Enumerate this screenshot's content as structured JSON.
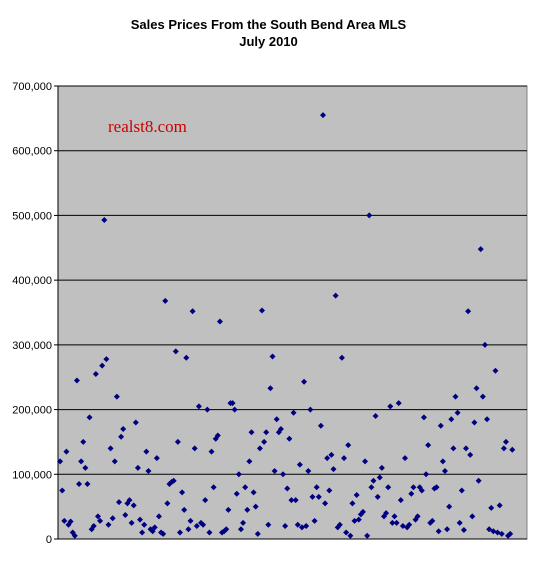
{
  "chart_data": {
    "type": "scatter",
    "title": "Sales Prices From the South Bend Area MLS",
    "subtitle": "July 2010",
    "watermark": "realst8.com",
    "xlabel": "",
    "ylabel": "",
    "ylim": [
      0,
      700000
    ],
    "xlim": [
      0,
      223
    ],
    "y_ticks": [
      0,
      100000,
      200000,
      300000,
      400000,
      500000,
      600000,
      700000
    ],
    "y_tick_labels": [
      "0",
      "100,000",
      "200,000",
      "300,000",
      "400,000",
      "500,000",
      "600,000",
      "700,000"
    ],
    "grid": true,
    "legend": "none",
    "colors": {
      "plot_background": "#c0c0c0",
      "marker": "#000080",
      "gridline": "#000000",
      "watermark": "#cc0000"
    },
    "points": [
      [
        1,
        120000
      ],
      [
        2,
        75000
      ],
      [
        3,
        28000
      ],
      [
        4,
        135000
      ],
      [
        5,
        22000
      ],
      [
        6,
        27000
      ],
      [
        7,
        10000
      ],
      [
        8,
        5000
      ],
      [
        9,
        245000
      ],
      [
        10,
        85000
      ],
      [
        11,
        120000
      ],
      [
        12,
        150000
      ],
      [
        13,
        110000
      ],
      [
        14,
        85000
      ],
      [
        15,
        188000
      ],
      [
        16,
        15000
      ],
      [
        17,
        20000
      ],
      [
        18,
        255000
      ],
      [
        19,
        35000
      ],
      [
        20,
        28000
      ],
      [
        21,
        268000
      ],
      [
        22,
        493000
      ],
      [
        23,
        278000
      ],
      [
        24,
        22000
      ],
      [
        25,
        140000
      ],
      [
        26,
        32000
      ],
      [
        27,
        120000
      ],
      [
        28,
        220000
      ],
      [
        29,
        57000
      ],
      [
        30,
        158000
      ],
      [
        31,
        170000
      ],
      [
        32,
        37000
      ],
      [
        33,
        55000
      ],
      [
        34,
        60000
      ],
      [
        35,
        25000
      ],
      [
        36,
        52000
      ],
      [
        37,
        180000
      ],
      [
        38,
        110000
      ],
      [
        39,
        30000
      ],
      [
        40,
        10000
      ],
      [
        41,
        22000
      ],
      [
        42,
        135000
      ],
      [
        43,
        105000
      ],
      [
        44,
        15000
      ],
      [
        45,
        12000
      ],
      [
        46,
        18000
      ],
      [
        47,
        125000
      ],
      [
        48,
        35000
      ],
      [
        49,
        10000
      ],
      [
        50,
        8000
      ],
      [
        51,
        368000
      ],
      [
        52,
        55000
      ],
      [
        53,
        85000
      ],
      [
        54,
        88000
      ],
      [
        55,
        90000
      ],
      [
        56,
        290000
      ],
      [
        57,
        150000
      ],
      [
        58,
        10000
      ],
      [
        59,
        72000
      ],
      [
        60,
        45000
      ],
      [
        61,
        280000
      ],
      [
        62,
        15000
      ],
      [
        63,
        28000
      ],
      [
        64,
        352000
      ],
      [
        65,
        140000
      ],
      [
        66,
        20000
      ],
      [
        67,
        205000
      ],
      [
        68,
        25000
      ],
      [
        69,
        22000
      ],
      [
        70,
        60000
      ],
      [
        71,
        200000
      ],
      [
        72,
        10000
      ],
      [
        73,
        135000
      ],
      [
        74,
        80000
      ],
      [
        75,
        155000
      ],
      [
        76,
        160000
      ],
      [
        77,
        336000
      ],
      [
        78,
        10000
      ],
      [
        79,
        12000
      ],
      [
        80,
        15000
      ],
      [
        81,
        45000
      ],
      [
        82,
        210000
      ],
      [
        83,
        210000
      ],
      [
        84,
        200000
      ],
      [
        85,
        70000
      ],
      [
        86,
        100000
      ],
      [
        87,
        15000
      ],
      [
        88,
        25000
      ],
      [
        89,
        80000
      ],
      [
        90,
        45000
      ],
      [
        91,
        120000
      ],
      [
        92,
        165000
      ],
      [
        93,
        72000
      ],
      [
        94,
        50000
      ],
      [
        95,
        8000
      ],
      [
        96,
        140000
      ],
      [
        97,
        353000
      ],
      [
        98,
        150000
      ],
      [
        99,
        165000
      ],
      [
        100,
        22000
      ],
      [
        101,
        233000
      ],
      [
        102,
        282000
      ],
      [
        103,
        105000
      ],
      [
        104,
        185000
      ],
      [
        105,
        165000
      ],
      [
        106,
        170000
      ],
      [
        107,
        100000
      ],
      [
        108,
        20000
      ],
      [
        109,
        78000
      ],
      [
        110,
        155000
      ],
      [
        111,
        60000
      ],
      [
        112,
        195000
      ],
      [
        113,
        60000
      ],
      [
        114,
        22000
      ],
      [
        115,
        115000
      ],
      [
        116,
        18000
      ],
      [
        117,
        243000
      ],
      [
        118,
        20000
      ],
      [
        119,
        105000
      ],
      [
        120,
        200000
      ],
      [
        121,
        65000
      ],
      [
        122,
        28000
      ],
      [
        123,
        80000
      ],
      [
        124,
        65000
      ],
      [
        125,
        175000
      ],
      [
        126,
        655000
      ],
      [
        127,
        55000
      ],
      [
        128,
        125000
      ],
      [
        129,
        75000
      ],
      [
        130,
        130000
      ],
      [
        131,
        108000
      ],
      [
        132,
        376000
      ],
      [
        133,
        18000
      ],
      [
        134,
        22000
      ],
      [
        135,
        280000
      ],
      [
        136,
        125000
      ],
      [
        137,
        10000
      ],
      [
        138,
        145000
      ],
      [
        139,
        5000
      ],
      [
        140,
        55000
      ],
      [
        141,
        28000
      ],
      [
        142,
        68000
      ],
      [
        143,
        30000
      ],
      [
        144,
        38000
      ],
      [
        145,
        42000
      ],
      [
        146,
        120000
      ],
      [
        147,
        5000
      ],
      [
        148,
        500000
      ],
      [
        149,
        80000
      ],
      [
        150,
        90000
      ],
      [
        151,
        190000
      ],
      [
        152,
        65000
      ],
      [
        153,
        95000
      ],
      [
        154,
        110000
      ],
      [
        155,
        35000
      ],
      [
        156,
        40000
      ],
      [
        157,
        80000
      ],
      [
        158,
        205000
      ],
      [
        159,
        25000
      ],
      [
        160,
        35000
      ],
      [
        161,
        25000
      ],
      [
        162,
        210000
      ],
      [
        163,
        60000
      ],
      [
        164,
        20000
      ],
      [
        165,
        125000
      ],
      [
        166,
        18000
      ],
      [
        167,
        22000
      ],
      [
        168,
        70000
      ],
      [
        169,
        80000
      ],
      [
        170,
        30000
      ],
      [
        171,
        35000
      ],
      [
        172,
        80000
      ],
      [
        173,
        75000
      ],
      [
        174,
        188000
      ],
      [
        175,
        100000
      ],
      [
        176,
        145000
      ],
      [
        177,
        25000
      ],
      [
        178,
        28000
      ],
      [
        179,
        78000
      ],
      [
        180,
        80000
      ],
      [
        181,
        12000
      ],
      [
        182,
        175000
      ],
      [
        183,
        120000
      ],
      [
        184,
        105000
      ],
      [
        185,
        15000
      ],
      [
        186,
        50000
      ],
      [
        187,
        185000
      ],
      [
        188,
        140000
      ],
      [
        189,
        220000
      ],
      [
        190,
        195000
      ],
      [
        191,
        25000
      ],
      [
        192,
        75000
      ],
      [
        193,
        14000
      ],
      [
        194,
        140000
      ],
      [
        195,
        352000
      ],
      [
        196,
        130000
      ],
      [
        197,
        35000
      ],
      [
        198,
        180000
      ],
      [
        199,
        233000
      ],
      [
        200,
        90000
      ],
      [
        201,
        448000
      ],
      [
        202,
        220000
      ],
      [
        203,
        300000
      ],
      [
        204,
        185000
      ],
      [
        205,
        15000
      ],
      [
        206,
        48000
      ],
      [
        207,
        12000
      ],
      [
        208,
        260000
      ],
      [
        209,
        10000
      ],
      [
        210,
        52000
      ],
      [
        211,
        8000
      ],
      [
        212,
        140000
      ],
      [
        213,
        150000
      ],
      [
        214,
        5000
      ],
      [
        215,
        8000
      ],
      [
        216,
        138000
      ]
    ]
  }
}
